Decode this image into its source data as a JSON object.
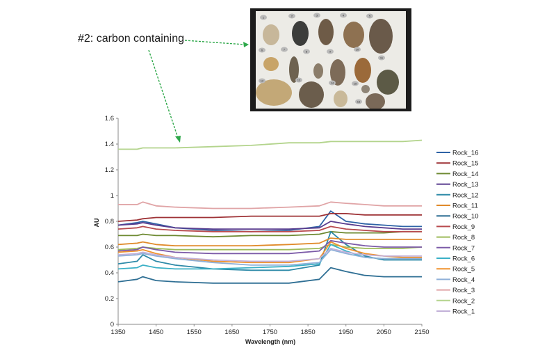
{
  "annotation": {
    "text": "#2: carbon containing",
    "arrow_color": "#2ea84a"
  },
  "photo": {
    "background": "#1c1c1c",
    "board_color": "#ecebe6",
    "rock_labels": [
      "1",
      "2",
      "3",
      "4",
      "5",
      "6",
      "7",
      "8",
      "9",
      "10",
      "11",
      "12",
      "13",
      "14",
      "15",
      "16"
    ]
  },
  "chart_data": {
    "type": "line",
    "title": "",
    "xlabel": "Wavelength (nm)",
    "ylabel": "AU",
    "xlim": [
      1350,
      2150
    ],
    "ylim": [
      0,
      1.6
    ],
    "xticks": [
      1350,
      1450,
      1550,
      1650,
      1750,
      1850,
      1950,
      2050,
      2150
    ],
    "yticks": [
      0,
      0.2,
      0.4,
      0.6,
      0.8,
      1,
      1.2,
      1.4,
      1.6
    ],
    "ytick_labels": [
      "0",
      "0.2",
      "0.4",
      "0.6",
      "0.8",
      "1",
      "1.2",
      "1.4",
      "1.6"
    ],
    "grid": false,
    "legend_position": "right",
    "x": [
      1350,
      1400,
      1415,
      1450,
      1500,
      1600,
      1700,
      1800,
      1880,
      1910,
      1950,
      2000,
      2050,
      2100,
      2150
    ],
    "series": [
      {
        "name": "Rock_16",
        "color": "#2e63a6",
        "values": [
          0.77,
          0.79,
          0.8,
          0.78,
          0.75,
          0.73,
          0.72,
          0.73,
          0.76,
          0.88,
          0.8,
          0.78,
          0.77,
          0.76,
          0.76
        ]
      },
      {
        "name": "Rock_15",
        "color": "#9e3236",
        "values": [
          0.8,
          0.81,
          0.82,
          0.83,
          0.83,
          0.83,
          0.84,
          0.84,
          0.84,
          0.86,
          0.86,
          0.85,
          0.85,
          0.85,
          0.85
        ]
      },
      {
        "name": "Rock_14",
        "color": "#6e8a32",
        "values": [
          0.69,
          0.69,
          0.7,
          0.69,
          0.69,
          0.68,
          0.69,
          0.69,
          0.7,
          0.72,
          0.71,
          0.71,
          0.71,
          0.72,
          0.72
        ]
      },
      {
        "name": "Rock_13",
        "color": "#5a3d8f",
        "values": [
          0.77,
          0.78,
          0.79,
          0.77,
          0.75,
          0.74,
          0.74,
          0.74,
          0.75,
          0.8,
          0.78,
          0.76,
          0.75,
          0.74,
          0.74
        ]
      },
      {
        "name": "Rock_12",
        "color": "#2e8aa8",
        "values": [
          0.47,
          0.49,
          0.54,
          0.49,
          0.46,
          0.43,
          0.42,
          0.42,
          0.46,
          0.72,
          0.62,
          0.53,
          0.5,
          0.5,
          0.5
        ]
      },
      {
        "name": "Rock_11",
        "color": "#e08a2a",
        "values": [
          0.62,
          0.63,
          0.64,
          0.62,
          0.61,
          0.61,
          0.61,
          0.62,
          0.63,
          0.67,
          0.66,
          0.66,
          0.66,
          0.66,
          0.66
        ]
      },
      {
        "name": "Rock_10",
        "color": "#2f6f94",
        "values": [
          0.33,
          0.35,
          0.37,
          0.34,
          0.33,
          0.32,
          0.32,
          0.32,
          0.35,
          0.44,
          0.41,
          0.38,
          0.37,
          0.37,
          0.37
        ]
      },
      {
        "name": "Rock_9",
        "color": "#b84a4e",
        "values": [
          0.74,
          0.75,
          0.76,
          0.74,
          0.73,
          0.72,
          0.72,
          0.72,
          0.73,
          0.76,
          0.74,
          0.73,
          0.72,
          0.72,
          0.72
        ]
      },
      {
        "name": "Rock_8",
        "color": "#9dbb5a",
        "values": [
          0.58,
          0.59,
          0.6,
          0.59,
          0.58,
          0.58,
          0.58,
          0.58,
          0.59,
          0.62,
          0.6,
          0.59,
          0.59,
          0.59,
          0.6
        ]
      },
      {
        "name": "Rock_7",
        "color": "#7c5ba8",
        "values": [
          0.57,
          0.58,
          0.6,
          0.58,
          0.56,
          0.55,
          0.55,
          0.55,
          0.57,
          0.65,
          0.63,
          0.61,
          0.6,
          0.6,
          0.6
        ]
      },
      {
        "name": "Rock_6",
        "color": "#3ab0c6",
        "values": [
          0.43,
          0.44,
          0.46,
          0.44,
          0.43,
          0.43,
          0.44,
          0.45,
          0.47,
          0.62,
          0.57,
          0.52,
          0.51,
          0.51,
          0.51
        ]
      },
      {
        "name": "Rock_5",
        "color": "#f0922e",
        "values": [
          0.56,
          0.57,
          0.58,
          0.55,
          0.52,
          0.49,
          0.48,
          0.48,
          0.51,
          0.64,
          0.59,
          0.55,
          0.53,
          0.52,
          0.52
        ]
      },
      {
        "name": "Rock_4",
        "color": "#8fb0d8",
        "values": [
          0.53,
          0.54,
          0.55,
          0.53,
          0.51,
          0.48,
          0.46,
          0.46,
          0.48,
          0.58,
          0.55,
          0.52,
          0.51,
          0.51,
          0.51
        ]
      },
      {
        "name": "Rock_3",
        "color": "#e0a4a6",
        "values": [
          0.93,
          0.93,
          0.95,
          0.92,
          0.91,
          0.9,
          0.9,
          0.91,
          0.92,
          0.95,
          0.94,
          0.93,
          0.92,
          0.92,
          0.92
        ]
      },
      {
        "name": "Rock_2",
        "color": "#b3d48c",
        "values": [
          1.36,
          1.36,
          1.37,
          1.37,
          1.37,
          1.38,
          1.39,
          1.41,
          1.41,
          1.42,
          1.42,
          1.42,
          1.42,
          1.42,
          1.43
        ]
      },
      {
        "name": "Rock_1",
        "color": "#c2b0d8",
        "values": [
          0.54,
          0.55,
          0.56,
          0.54,
          0.52,
          0.5,
          0.49,
          0.49,
          0.51,
          0.59,
          0.56,
          0.54,
          0.53,
          0.53,
          0.53
        ]
      }
    ]
  }
}
